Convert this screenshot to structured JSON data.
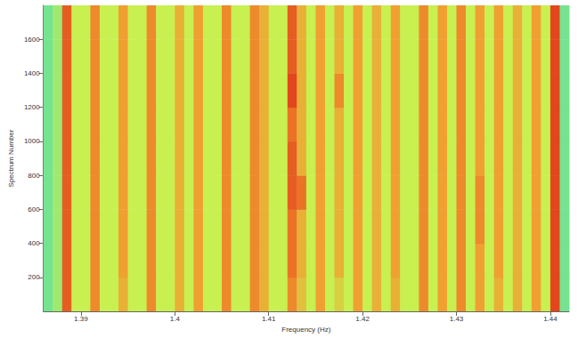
{
  "chart_data": {
    "type": "heatmap",
    "xlabel": "Frequency (Hz)",
    "ylabel": "Spectrum Number",
    "xlim": [
      1.386,
      1.442
    ],
    "xticks": [
      1.39,
      1.4,
      1.41,
      1.42,
      1.43,
      1.44
    ],
    "ylim": [
      0,
      1800
    ],
    "yticks": [
      200,
      400,
      600,
      800,
      1000,
      1200,
      1400,
      1600
    ],
    "zlim": [
      0,
      1
    ],
    "x_edges": [
      1.386,
      1.387,
      1.388,
      1.389,
      1.39,
      1.391,
      1.392,
      1.393,
      1.394,
      1.395,
      1.396,
      1.397,
      1.398,
      1.399,
      1.4,
      1.401,
      1.402,
      1.403,
      1.404,
      1.405,
      1.406,
      1.407,
      1.408,
      1.409,
      1.41,
      1.411,
      1.412,
      1.413,
      1.414,
      1.415,
      1.416,
      1.417,
      1.418,
      1.419,
      1.42,
      1.421,
      1.422,
      1.423,
      1.424,
      1.425,
      1.426,
      1.427,
      1.428,
      1.429,
      1.43,
      1.431,
      1.432,
      1.433,
      1.434,
      1.435,
      1.436,
      1.437,
      1.438,
      1.439,
      1.44,
      1.441,
      1.442
    ],
    "y_edges": [
      0,
      200,
      400,
      600,
      800,
      1000,
      1200,
      1400,
      1600,
      1800
    ],
    "cells": [
      [
        0.3,
        0.4,
        0.9,
        0.5,
        0.5,
        0.8,
        0.5,
        0.5,
        0.7,
        0.5,
        0.5,
        0.8,
        0.5,
        0.5,
        0.7,
        0.5,
        0.75,
        0.5,
        0.5,
        0.8,
        0.5,
        0.5,
        0.8,
        0.7,
        0.5,
        0.5,
        0.8,
        0.65,
        0.5,
        0.75,
        0.5,
        0.6,
        0.5,
        0.75,
        0.5,
        0.7,
        0.5,
        0.7,
        0.5,
        0.5,
        0.8,
        0.5,
        0.75,
        0.5,
        0.8,
        0.5,
        0.75,
        0.5,
        0.7,
        0.5,
        0.7,
        0.5,
        0.75,
        0.5,
        0.95,
        0.3
      ],
      [
        0.3,
        0.4,
        0.9,
        0.5,
        0.5,
        0.8,
        0.5,
        0.5,
        0.75,
        0.5,
        0.5,
        0.8,
        0.5,
        0.5,
        0.7,
        0.5,
        0.75,
        0.5,
        0.5,
        0.8,
        0.5,
        0.5,
        0.8,
        0.7,
        0.5,
        0.5,
        0.85,
        0.7,
        0.5,
        0.75,
        0.5,
        0.7,
        0.5,
        0.75,
        0.5,
        0.7,
        0.5,
        0.75,
        0.5,
        0.5,
        0.8,
        0.5,
        0.75,
        0.5,
        0.8,
        0.5,
        0.75,
        0.5,
        0.75,
        0.5,
        0.7,
        0.5,
        0.75,
        0.5,
        0.95,
        0.3
      ],
      [
        0.3,
        0.4,
        0.9,
        0.5,
        0.5,
        0.8,
        0.5,
        0.5,
        0.75,
        0.5,
        0.5,
        0.8,
        0.5,
        0.5,
        0.7,
        0.5,
        0.75,
        0.5,
        0.5,
        0.8,
        0.5,
        0.5,
        0.8,
        0.7,
        0.5,
        0.5,
        0.85,
        0.7,
        0.5,
        0.75,
        0.5,
        0.7,
        0.5,
        0.75,
        0.5,
        0.7,
        0.5,
        0.75,
        0.5,
        0.5,
        0.8,
        0.5,
        0.75,
        0.5,
        0.8,
        0.5,
        0.8,
        0.5,
        0.75,
        0.5,
        0.7,
        0.5,
        0.75,
        0.5,
        0.95,
        0.3
      ],
      [
        0.3,
        0.4,
        0.9,
        0.5,
        0.5,
        0.8,
        0.5,
        0.5,
        0.75,
        0.5,
        0.5,
        0.8,
        0.5,
        0.5,
        0.7,
        0.5,
        0.75,
        0.5,
        0.5,
        0.8,
        0.5,
        0.5,
        0.8,
        0.7,
        0.5,
        0.5,
        0.9,
        0.85,
        0.5,
        0.75,
        0.5,
        0.7,
        0.5,
        0.75,
        0.5,
        0.7,
        0.5,
        0.75,
        0.5,
        0.5,
        0.8,
        0.5,
        0.75,
        0.5,
        0.8,
        0.5,
        0.8,
        0.5,
        0.75,
        0.5,
        0.7,
        0.5,
        0.75,
        0.5,
        0.95,
        0.3
      ],
      [
        0.3,
        0.4,
        0.9,
        0.5,
        0.5,
        0.8,
        0.5,
        0.5,
        0.75,
        0.5,
        0.5,
        0.8,
        0.5,
        0.5,
        0.7,
        0.5,
        0.75,
        0.5,
        0.5,
        0.8,
        0.5,
        0.5,
        0.8,
        0.7,
        0.5,
        0.5,
        0.9,
        0.7,
        0.5,
        0.75,
        0.5,
        0.7,
        0.5,
        0.75,
        0.5,
        0.7,
        0.5,
        0.75,
        0.5,
        0.5,
        0.8,
        0.5,
        0.75,
        0.5,
        0.8,
        0.5,
        0.75,
        0.5,
        0.75,
        0.5,
        0.7,
        0.5,
        0.75,
        0.5,
        0.95,
        0.3
      ],
      [
        0.3,
        0.4,
        0.9,
        0.5,
        0.5,
        0.8,
        0.5,
        0.5,
        0.75,
        0.5,
        0.5,
        0.8,
        0.5,
        0.5,
        0.7,
        0.5,
        0.75,
        0.5,
        0.5,
        0.8,
        0.5,
        0.5,
        0.8,
        0.7,
        0.5,
        0.5,
        0.85,
        0.7,
        0.5,
        0.75,
        0.5,
        0.7,
        0.5,
        0.75,
        0.5,
        0.7,
        0.5,
        0.75,
        0.5,
        0.5,
        0.8,
        0.5,
        0.75,
        0.5,
        0.8,
        0.5,
        0.75,
        0.5,
        0.75,
        0.5,
        0.7,
        0.5,
        0.75,
        0.5,
        0.95,
        0.3
      ],
      [
        0.3,
        0.4,
        0.9,
        0.5,
        0.5,
        0.8,
        0.5,
        0.5,
        0.75,
        0.5,
        0.5,
        0.8,
        0.5,
        0.5,
        0.7,
        0.5,
        0.75,
        0.5,
        0.5,
        0.8,
        0.5,
        0.5,
        0.8,
        0.7,
        0.5,
        0.5,
        0.95,
        0.7,
        0.5,
        0.75,
        0.5,
        0.8,
        0.5,
        0.75,
        0.5,
        0.7,
        0.5,
        0.75,
        0.5,
        0.5,
        0.8,
        0.5,
        0.75,
        0.5,
        0.8,
        0.5,
        0.75,
        0.5,
        0.75,
        0.5,
        0.7,
        0.5,
        0.75,
        0.5,
        0.95,
        0.3
      ],
      [
        0.3,
        0.4,
        0.9,
        0.5,
        0.5,
        0.8,
        0.5,
        0.5,
        0.75,
        0.5,
        0.5,
        0.8,
        0.5,
        0.5,
        0.7,
        0.5,
        0.75,
        0.5,
        0.5,
        0.8,
        0.5,
        0.5,
        0.8,
        0.7,
        0.5,
        0.5,
        0.9,
        0.7,
        0.5,
        0.75,
        0.5,
        0.7,
        0.5,
        0.75,
        0.5,
        0.7,
        0.5,
        0.75,
        0.5,
        0.5,
        0.8,
        0.5,
        0.75,
        0.5,
        0.8,
        0.5,
        0.75,
        0.5,
        0.75,
        0.5,
        0.7,
        0.5,
        0.75,
        0.5,
        0.95,
        0.3
      ],
      [
        0.3,
        0.4,
        0.9,
        0.5,
        0.5,
        0.8,
        0.5,
        0.5,
        0.75,
        0.5,
        0.5,
        0.8,
        0.5,
        0.5,
        0.7,
        0.5,
        0.75,
        0.5,
        0.5,
        0.8,
        0.5,
        0.5,
        0.8,
        0.7,
        0.5,
        0.5,
        0.9,
        0.7,
        0.5,
        0.75,
        0.5,
        0.7,
        0.5,
        0.75,
        0.5,
        0.7,
        0.5,
        0.75,
        0.5,
        0.5,
        0.8,
        0.5,
        0.75,
        0.5,
        0.8,
        0.5,
        0.75,
        0.5,
        0.75,
        0.5,
        0.7,
        0.5,
        0.75,
        0.5,
        0.95,
        0.3
      ]
    ]
  }
}
